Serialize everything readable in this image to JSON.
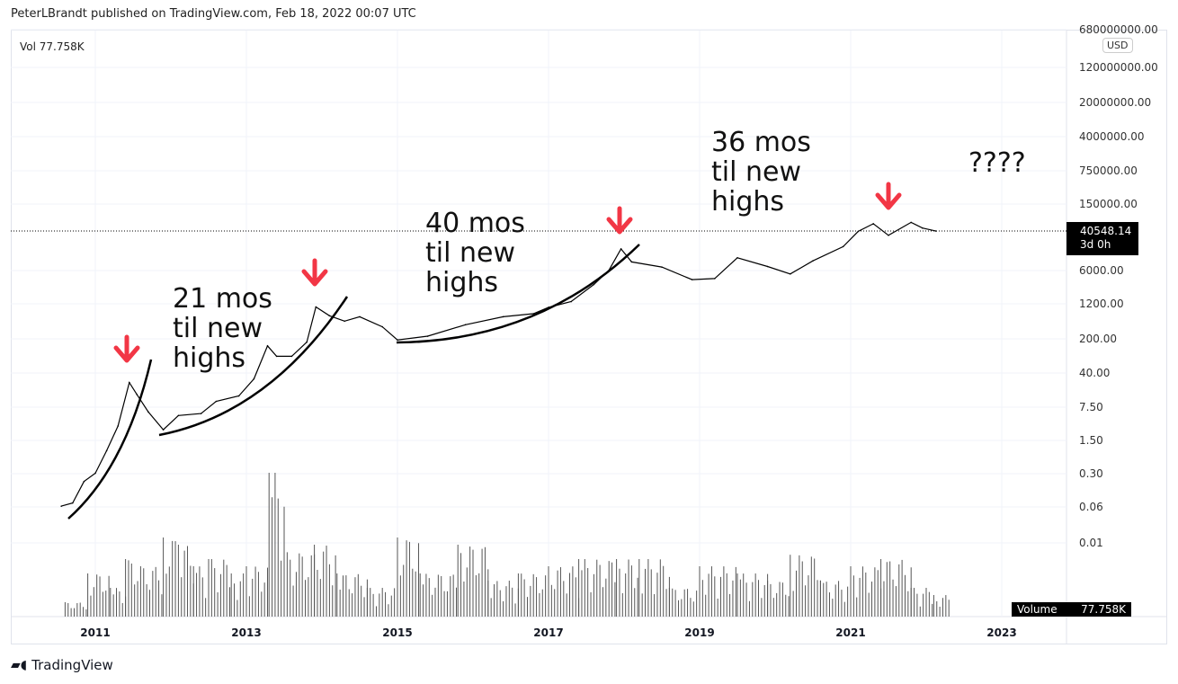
{
  "header": "PeterLBrandt published on TradingView.com, Feb 18, 2022 00:07 UTC",
  "vol_legend": "Vol  77.758K",
  "currency": "USD",
  "last_price": "40548.14",
  "countdown": "3d 0h",
  "volume_label": "Volume",
  "volume_value": "77.758K",
  "annotations": {
    "a1": [
      "21 mos",
      "til new",
      "highs"
    ],
    "a2": [
      "40 mos",
      "til new",
      "highs"
    ],
    "a3": [
      "36 mos",
      "til new",
      "highs"
    ],
    "a4": "????"
  },
  "logo": "TradingView",
  "colors": {
    "arrow": "#f23645",
    "line": "#000000",
    "volume": "#555555"
  },
  "chart_data": {
    "type": "line",
    "scale": "log",
    "y_ticks": [
      "680000000.00",
      "120000000.00",
      "20000000.00",
      "4000000.00",
      "750000.00",
      "150000.00",
      "6000.00",
      "1200.00",
      "200.00",
      "40.00",
      "7.50",
      "1.50",
      "0.30",
      "0.06",
      "0.01"
    ],
    "x_ticks": [
      "2011",
      "2013",
      "2015",
      "2017",
      "2019",
      "2021",
      "2023"
    ],
    "grid": true,
    "price": [
      [
        2010.55,
        0.06
      ],
      [
        2010.7,
        0.07
      ],
      [
        2010.85,
        0.2
      ],
      [
        2011.0,
        0.3
      ],
      [
        2011.15,
        0.9
      ],
      [
        2011.3,
        3
      ],
      [
        2011.45,
        25
      ],
      [
        2011.55,
        14
      ],
      [
        2011.7,
        6
      ],
      [
        2011.9,
        2.5
      ],
      [
        2012.1,
        5
      ],
      [
        2012.4,
        5.5
      ],
      [
        2012.6,
        10
      ],
      [
        2012.9,
        13
      ],
      [
        2013.1,
        30
      ],
      [
        2013.28,
        150
      ],
      [
        2013.4,
        90
      ],
      [
        2013.6,
        90
      ],
      [
        2013.8,
        180
      ],
      [
        2013.92,
        1000
      ],
      [
        2014.1,
        650
      ],
      [
        2014.3,
        500
      ],
      [
        2014.5,
        620
      ],
      [
        2014.8,
        380
      ],
      [
        2015.0,
        200
      ],
      [
        2015.4,
        240
      ],
      [
        2015.9,
        420
      ],
      [
        2016.4,
        620
      ],
      [
        2016.8,
        720
      ],
      [
        2017.0,
        980
      ],
      [
        2017.3,
        1300
      ],
      [
        2017.6,
        3000
      ],
      [
        2017.8,
        6000
      ],
      [
        2017.96,
        17000
      ],
      [
        2018.1,
        9000
      ],
      [
        2018.5,
        7000
      ],
      [
        2018.9,
        3800
      ],
      [
        2019.2,
        4000
      ],
      [
        2019.5,
        11000
      ],
      [
        2019.9,
        7200
      ],
      [
        2020.2,
        5000
      ],
      [
        2020.5,
        9500
      ],
      [
        2020.9,
        19000
      ],
      [
        2021.1,
        40000
      ],
      [
        2021.3,
        58000
      ],
      [
        2021.5,
        33000
      ],
      [
        2021.8,
        62000
      ],
      [
        2021.95,
        47000
      ],
      [
        2022.13,
        40548.14
      ]
    ],
    "volume_relative": [
      [
        2010.6,
        0.1
      ],
      [
        2010.9,
        0.3
      ],
      [
        2011.2,
        0.2
      ],
      [
        2011.4,
        0.4
      ],
      [
        2011.6,
        0.35
      ],
      [
        2011.9,
        0.55
      ],
      [
        2012.1,
        0.5
      ],
      [
        2012.3,
        0.35
      ],
      [
        2012.5,
        0.4
      ],
      [
        2012.8,
        0.3
      ],
      [
        2013.0,
        0.35
      ],
      [
        2013.3,
        1.0
      ],
      [
        2013.5,
        0.45
      ],
      [
        2013.9,
        0.5
      ],
      [
        2014.2,
        0.3
      ],
      [
        2014.6,
        0.2
      ],
      [
        2015.0,
        0.55
      ],
      [
        2015.3,
        0.3
      ],
      [
        2015.8,
        0.5
      ],
      [
        2016.2,
        0.25
      ],
      [
        2016.6,
        0.3
      ],
      [
        2017.0,
        0.35
      ],
      [
        2017.4,
        0.4
      ],
      [
        2017.9,
        0.4
      ],
      [
        2018.2,
        0.4
      ],
      [
        2018.6,
        0.2
      ],
      [
        2019.0,
        0.35
      ],
      [
        2019.5,
        0.3
      ],
      [
        2019.9,
        0.25
      ],
      [
        2020.2,
        0.43
      ],
      [
        2020.6,
        0.25
      ],
      [
        2021.0,
        0.35
      ],
      [
        2021.4,
        0.4
      ],
      [
        2021.8,
        0.2
      ],
      [
        2022.1,
        0.15
      ]
    ]
  }
}
